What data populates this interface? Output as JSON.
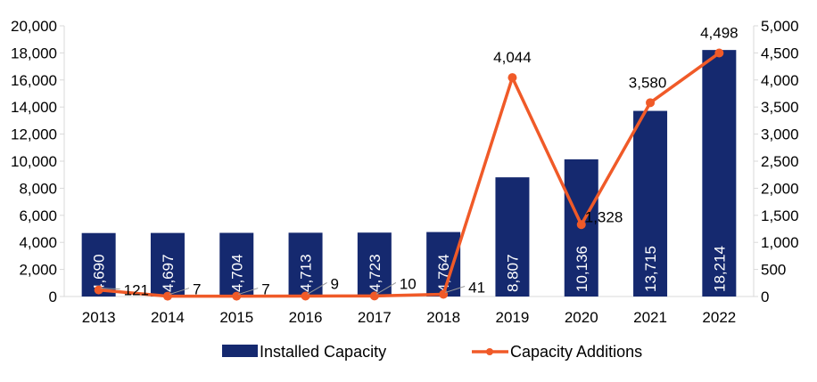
{
  "chart_data": {
    "type": "bar+line",
    "categories": [
      "2013",
      "2014",
      "2015",
      "2016",
      "2017",
      "2018",
      "2019",
      "2020",
      "2021",
      "2022"
    ],
    "series": [
      {
        "name": "Installed Capacity",
        "type": "bar",
        "axis": "left",
        "color": "#15296f",
        "values": [
          4690,
          4697,
          4704,
          4713,
          4723,
          4764,
          8807,
          10136,
          13715,
          18214
        ],
        "labels": [
          "4,690",
          "4,697",
          "4,704",
          "4,713",
          "4,723",
          "4,764",
          "8,807",
          "10,136",
          "13,715",
          "18,214"
        ]
      },
      {
        "name": "Capacity Additions",
        "type": "line",
        "axis": "right",
        "color": "#f05a28",
        "values": [
          121,
          7,
          7,
          9,
          10,
          41,
          4044,
          1328,
          3580,
          4498
        ],
        "labels": [
          "121",
          "7",
          "7",
          "9",
          "10",
          "41",
          "4,044",
          "1,328",
          "3,580",
          "4,498"
        ]
      }
    ],
    "y_left": {
      "range": [
        0,
        20000
      ],
      "ticks": [
        "0",
        "2,000",
        "4,000",
        "6,000",
        "8,000",
        "10,000",
        "12,000",
        "14,000",
        "16,000",
        "18,000",
        "20,000"
      ]
    },
    "y_right": {
      "range": [
        0,
        5000
      ],
      "ticks": [
        "0",
        "500",
        "1,000",
        "1,500",
        "2,000",
        "2,500",
        "3,000",
        "3,500",
        "4,000",
        "4,500",
        "5,000"
      ]
    },
    "grid": false,
    "legend": "bottom"
  }
}
